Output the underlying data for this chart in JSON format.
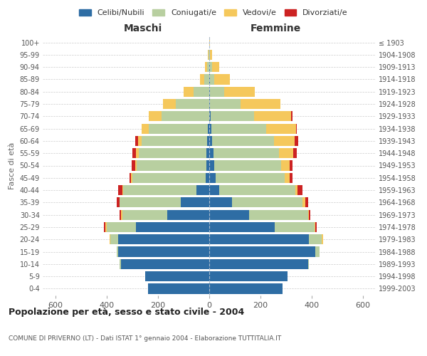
{
  "age_groups": [
    "0-4",
    "5-9",
    "10-14",
    "15-19",
    "20-24",
    "25-29",
    "30-34",
    "35-39",
    "40-44",
    "45-49",
    "50-54",
    "55-59",
    "60-64",
    "65-69",
    "70-74",
    "75-79",
    "80-84",
    "85-89",
    "90-94",
    "95-99",
    "100+"
  ],
  "birth_years": [
    "1999-2003",
    "1994-1998",
    "1989-1993",
    "1984-1988",
    "1979-1983",
    "1974-1978",
    "1969-1973",
    "1964-1968",
    "1959-1963",
    "1954-1958",
    "1949-1953",
    "1944-1948",
    "1939-1943",
    "1934-1938",
    "1929-1933",
    "1924-1928",
    "1919-1923",
    "1914-1918",
    "1909-1913",
    "1904-1908",
    "≤ 1903"
  ],
  "males": {
    "celibi": [
      240,
      250,
      345,
      355,
      355,
      285,
      165,
      110,
      50,
      15,
      12,
      10,
      8,
      5,
      0,
      0,
      0,
      0,
      0,
      0,
      0
    ],
    "coniugati": [
      0,
      0,
      5,
      5,
      30,
      115,
      175,
      240,
      285,
      285,
      270,
      265,
      255,
      230,
      185,
      130,
      60,
      20,
      8,
      3,
      0
    ],
    "vedovi": [
      0,
      0,
      0,
      0,
      5,
      5,
      5,
      0,
      5,
      5,
      8,
      10,
      15,
      30,
      50,
      50,
      40,
      15,
      8,
      2,
      0
    ],
    "divorziati": [
      0,
      0,
      0,
      0,
      0,
      5,
      5,
      10,
      15,
      5,
      12,
      15,
      10,
      0,
      0,
      0,
      0,
      0,
      0,
      0,
      0
    ]
  },
  "females": {
    "nubili": [
      285,
      305,
      385,
      415,
      390,
      255,
      155,
      90,
      40,
      25,
      20,
      18,
      12,
      8,
      5,
      3,
      2,
      2,
      2,
      0,
      0
    ],
    "coniugate": [
      0,
      0,
      5,
      15,
      50,
      155,
      230,
      275,
      295,
      270,
      260,
      255,
      240,
      215,
      170,
      120,
      55,
      18,
      8,
      2,
      0
    ],
    "vedove": [
      0,
      0,
      0,
      0,
      5,
      5,
      5,
      10,
      10,
      20,
      35,
      55,
      80,
      115,
      145,
      155,
      120,
      60,
      30,
      8,
      2
    ],
    "divorziate": [
      0,
      0,
      0,
      0,
      0,
      5,
      5,
      10,
      20,
      10,
      10,
      15,
      15,
      5,
      5,
      0,
      0,
      0,
      0,
      0,
      0
    ]
  },
  "colors": {
    "celibi": "#2e6da4",
    "coniugati": "#b8cfa0",
    "vedovi": "#f5c85c",
    "divorziati": "#cc2222"
  },
  "xlim": 650,
  "title": "Popolazione per età, sesso e stato civile - 2004",
  "subtitle": "COMUNE DI PRIVERNO (LT) - Dati ISTAT 1° gennaio 2004 - Elaborazione TUTTITALIA.IT",
  "ylabel_left": "Fasce di età",
  "xlabel_maschi": "Maschi",
  "xlabel_femmine": "Femmine",
  "legend_labels": [
    "Celibi/Nubili",
    "Coniugati/e",
    "Vedovi/e",
    "Divorziati/e"
  ],
  "bg_color": "#ffffff",
  "grid_color": "#cccccc",
  "xticks": [
    -600,
    -400,
    -200,
    0,
    200,
    400,
    600
  ]
}
